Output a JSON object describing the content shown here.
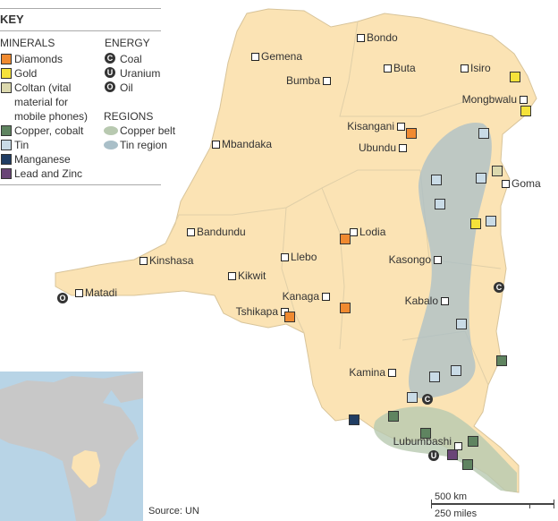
{
  "key": {
    "title": "KEY",
    "minerals_heading": "MINERALS",
    "energy_heading": "ENERGY",
    "regions_heading": "REGIONS",
    "minerals": [
      {
        "label": "Diamonds",
        "color": "#f08a30"
      },
      {
        "label": "Gold",
        "color": "#f5e23a"
      },
      {
        "label": "Coltan (vital",
        "label2": "material for",
        "label3": "mobile phones)",
        "color": "#dcd9ae"
      },
      {
        "label": "Copper, cobalt",
        "color": "#5f8460"
      },
      {
        "label": "Tin",
        "color": "#c9dbe6"
      },
      {
        "label": "Manganese",
        "color": "#203d63"
      },
      {
        "label": "Lead and Zinc",
        "color": "#6a4577"
      }
    ],
    "energy": [
      {
        "label": "Coal",
        "symbol": "C"
      },
      {
        "label": "Uranium",
        "symbol": "U"
      },
      {
        "label": "Oil",
        "symbol": "O"
      }
    ],
    "regions": [
      {
        "label": "Copper belt",
        "color": "#b8c9b0"
      },
      {
        "label": "Tin region",
        "color": "#a9bfc8"
      }
    ]
  },
  "cities": [
    "Bondo",
    "Gemena",
    "Buta",
    "Isiro",
    "Bumba",
    "Mongbwalu",
    "Kisangani",
    "Ubundu",
    "Mbandaka",
    "Goma",
    "Bandundu",
    "Lodia",
    "Kinshasa",
    "Llebo",
    "Kasongo",
    "Kikwit",
    "Matadi",
    "Kanaga",
    "Kabalo",
    "Tshikapa",
    "Kamina",
    "Lubumbashi"
  ],
  "scale": {
    "km": "500 km",
    "miles": "250 miles"
  },
  "source": "Source: UN",
  "colors": {
    "country": "#fbe3b4",
    "border": "#d8c49a",
    "ocean": "#b8d4e6",
    "africa": "#c8c8c8"
  }
}
